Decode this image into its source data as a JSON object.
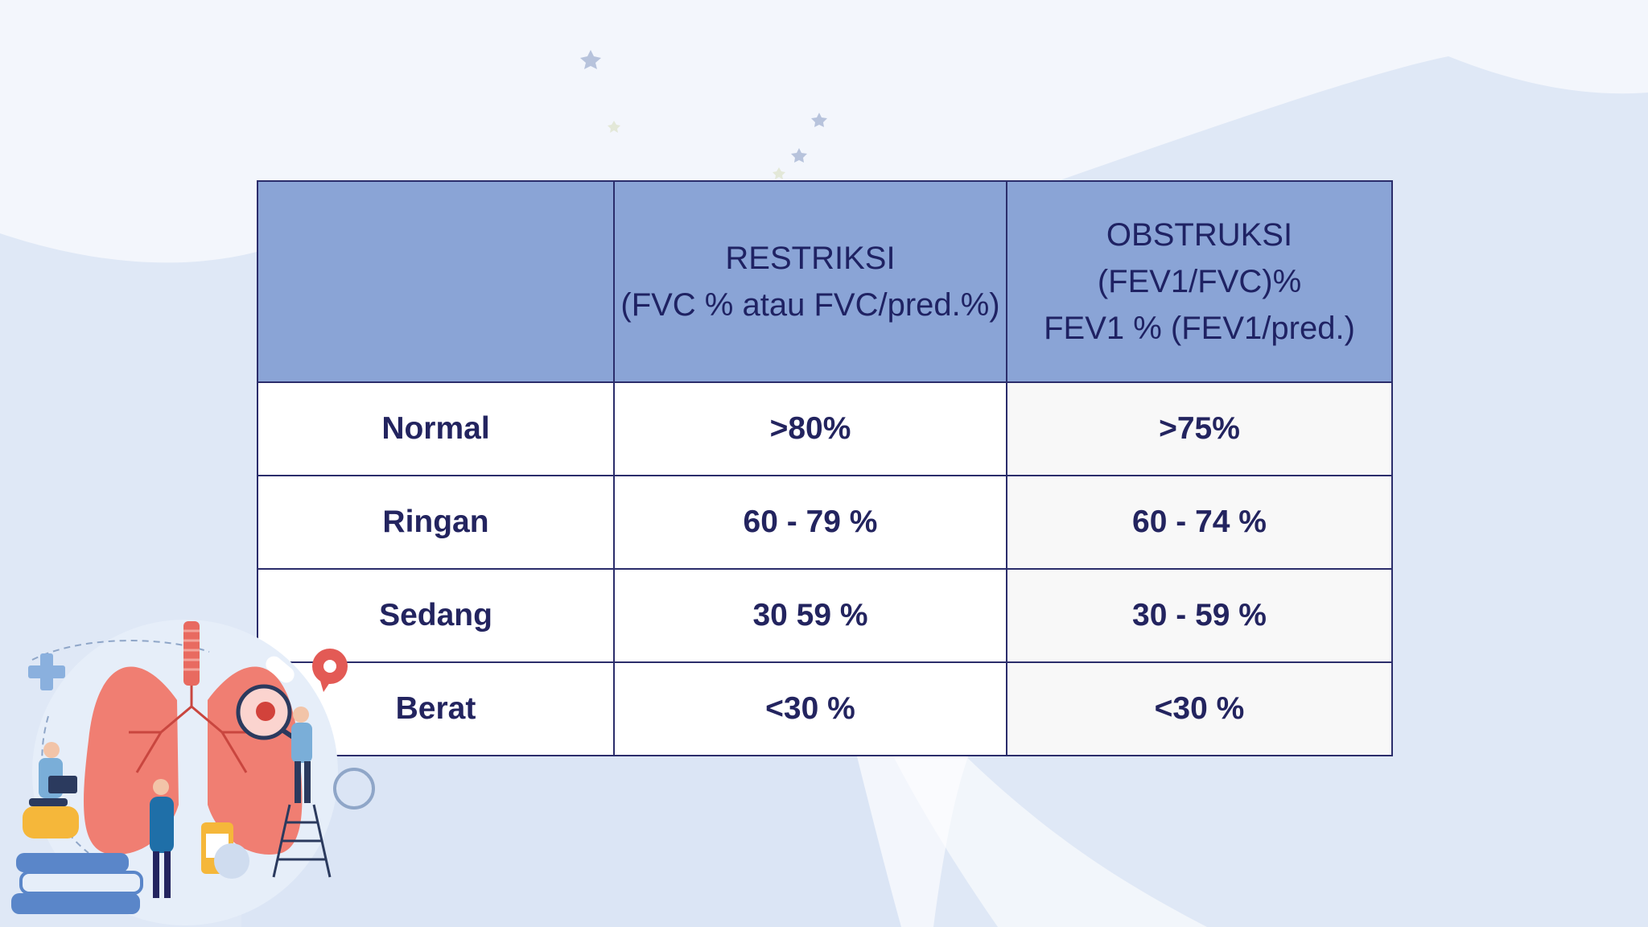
{
  "table": {
    "headers": [
      {
        "lines": []
      },
      {
        "lines": [
          "RESTRIKSI",
          "(FVC % atau FVC/pred.%)"
        ]
      },
      {
        "lines": [
          "OBSTRUKSI",
          "(FEV1/FVC)%",
          "FEV1 % (FEV1/pred.)"
        ]
      }
    ],
    "rows": [
      {
        "label": "Normal",
        "restriksi": ">80%",
        "obstruksi": ">75%"
      },
      {
        "label": "Ringan",
        "restriksi": "60 - 79 %",
        "obstruksi": "60 - 74 %"
      },
      {
        "label": "Sedang",
        "restriksi": "30 59 %",
        "obstruksi": "30 - 59 %"
      },
      {
        "label": "Berat",
        "restriksi": "<30 %",
        "obstruksi": "<30 %"
      }
    ]
  },
  "colors": {
    "header_fill": "#8aa4d6",
    "border": "#2b2d6b",
    "text": "#23245f",
    "background": "#f3f6fc",
    "wave": "#dfe8f6"
  },
  "illustration": {
    "icon": "lungs-medical-team-illustration"
  }
}
